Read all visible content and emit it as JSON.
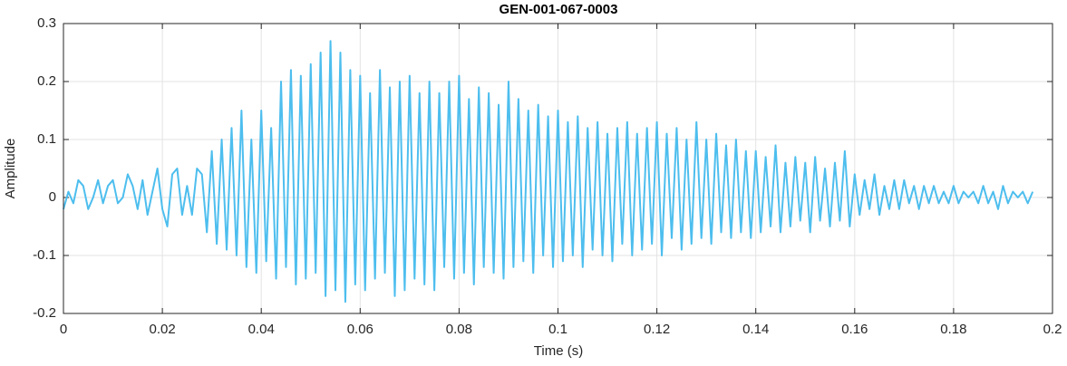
{
  "chart_data": {
    "type": "line",
    "title": "GEN-001-067-0003",
    "x_label": "Time (s)",
    "y_label": "Amplitude",
    "xlim": [
      0,
      0.2
    ],
    "ylim": [
      -0.2,
      0.3
    ],
    "xticks": [
      0,
      0.02,
      0.04,
      0.06,
      0.08,
      0.1,
      0.12,
      0.14,
      0.16,
      0.18,
      0.2
    ],
    "yticks": [
      -0.2,
      -0.1,
      0,
      0.1,
      0.2,
      0.3
    ],
    "grid": true,
    "x": [
      0,
      0.001,
      0.002,
      0.003,
      0.004,
      0.005,
      0.006,
      0.007,
      0.008,
      0.009,
      0.01,
      0.011,
      0.012,
      0.013,
      0.014,
      0.015,
      0.016,
      0.017,
      0.018,
      0.019,
      0.02,
      0.021,
      0.022,
      0.023,
      0.024,
      0.025,
      0.026,
      0.027,
      0.028,
      0.029,
      0.03,
      0.031,
      0.032,
      0.033,
      0.034,
      0.035,
      0.036,
      0.037,
      0.038,
      0.039,
      0.04,
      0.041,
      0.042,
      0.043,
      0.044,
      0.045,
      0.046,
      0.047,
      0.048,
      0.049,
      0.05,
      0.051,
      0.052,
      0.053,
      0.054,
      0.055,
      0.056,
      0.057,
      0.058,
      0.059,
      0.06,
      0.061,
      0.062,
      0.063,
      0.064,
      0.065,
      0.066,
      0.067,
      0.068,
      0.069,
      0.07,
      0.071,
      0.072,
      0.073,
      0.074,
      0.075,
      0.076,
      0.077,
      0.078,
      0.079,
      0.08,
      0.081,
      0.082,
      0.083,
      0.084,
      0.085,
      0.086,
      0.087,
      0.088,
      0.089,
      0.09,
      0.091,
      0.092,
      0.093,
      0.094,
      0.095,
      0.096,
      0.097,
      0.098,
      0.099,
      0.1,
      0.101,
      0.102,
      0.103,
      0.104,
      0.105,
      0.106,
      0.107,
      0.108,
      0.109,
      0.11,
      0.111,
      0.112,
      0.113,
      0.114,
      0.115,
      0.116,
      0.117,
      0.118,
      0.119,
      0.12,
      0.121,
      0.122,
      0.123,
      0.124,
      0.125,
      0.126,
      0.127,
      0.128,
      0.129,
      0.13,
      0.131,
      0.132,
      0.133,
      0.134,
      0.135,
      0.136,
      0.137,
      0.138,
      0.139,
      0.14,
      0.141,
      0.142,
      0.143,
      0.144,
      0.145,
      0.146,
      0.147,
      0.148,
      0.149,
      0.15,
      0.151,
      0.152,
      0.153,
      0.154,
      0.155,
      0.156,
      0.157,
      0.158,
      0.159,
      0.16,
      0.161,
      0.162,
      0.163,
      0.164,
      0.165,
      0.166,
      0.167,
      0.168,
      0.169,
      0.17,
      0.171,
      0.172,
      0.173,
      0.174,
      0.175,
      0.176,
      0.177,
      0.178,
      0.179,
      0.18,
      0.181,
      0.182,
      0.183,
      0.184,
      0.185,
      0.186,
      0.187,
      0.188,
      0.189,
      0.19,
      0.191,
      0.192,
      0.193,
      0.194,
      0.195,
      0.196
    ],
    "series": [
      {
        "color": "#4dbeee",
        "values": [
          -0.02,
          0.01,
          -0.01,
          0.03,
          0.02,
          -0.02,
          0.0,
          0.03,
          -0.01,
          0.02,
          0.03,
          -0.01,
          0.0,
          0.04,
          0.02,
          -0.02,
          0.03,
          -0.03,
          0.01,
          0.05,
          -0.02,
          -0.05,
          0.04,
          0.05,
          -0.03,
          0.02,
          -0.03,
          0.05,
          0.04,
          -0.06,
          0.08,
          -0.08,
          0.1,
          -0.09,
          0.12,
          -0.1,
          0.15,
          -0.12,
          0.1,
          -0.13,
          0.15,
          -0.11,
          0.12,
          -0.14,
          0.2,
          -0.12,
          0.22,
          -0.15,
          0.21,
          -0.14,
          0.23,
          -0.13,
          0.25,
          -0.17,
          0.27,
          -0.16,
          0.25,
          -0.18,
          0.22,
          -0.15,
          0.21,
          -0.16,
          0.18,
          -0.14,
          0.22,
          -0.13,
          0.19,
          -0.17,
          0.2,
          -0.16,
          0.21,
          -0.14,
          0.18,
          -0.15,
          0.2,
          -0.16,
          0.18,
          -0.12,
          0.2,
          -0.14,
          0.21,
          -0.13,
          0.17,
          -0.15,
          0.19,
          -0.12,
          0.18,
          -0.13,
          0.16,
          -0.14,
          0.2,
          -0.12,
          0.17,
          -0.11,
          0.15,
          -0.13,
          0.16,
          -0.1,
          0.14,
          -0.12,
          0.15,
          -0.11,
          0.13,
          -0.1,
          0.14,
          -0.12,
          0.12,
          -0.09,
          0.13,
          -0.1,
          0.11,
          -0.11,
          0.12,
          -0.08,
          0.13,
          -0.1,
          0.11,
          -0.09,
          0.12,
          -0.08,
          0.13,
          -0.1,
          0.11,
          -0.07,
          0.12,
          -0.09,
          0.1,
          -0.08,
          0.13,
          -0.07,
          0.1,
          -0.08,
          0.11,
          -0.06,
          0.09,
          -0.07,
          0.1,
          -0.06,
          0.08,
          -0.07,
          0.08,
          -0.06,
          0.07,
          -0.05,
          0.09,
          -0.06,
          0.06,
          -0.05,
          0.07,
          -0.04,
          0.06,
          -0.06,
          0.07,
          -0.04,
          0.05,
          -0.05,
          0.06,
          -0.04,
          0.08,
          -0.05,
          0.04,
          -0.03,
          0.03,
          -0.02,
          0.04,
          -0.03,
          0.02,
          -0.02,
          0.03,
          -0.02,
          0.03,
          -0.01,
          0.02,
          -0.02,
          0.02,
          -0.01,
          0.02,
          -0.01,
          0.01,
          -0.01,
          0.02,
          -0.01,
          0.01,
          0.0,
          0.01,
          -0.01,
          0.02,
          -0.01,
          0.01,
          -0.02,
          0.02,
          -0.01,
          0.01,
          0.0,
          0.01,
          -0.01,
          0.01
        ]
      }
    ]
  }
}
